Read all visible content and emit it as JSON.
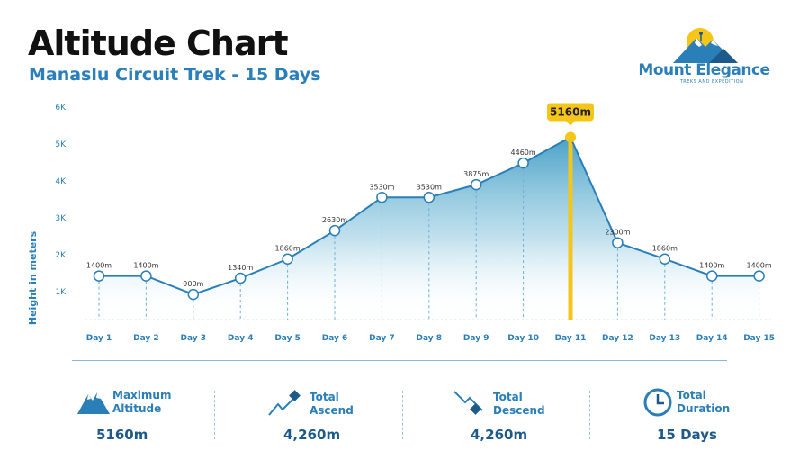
{
  "header": {
    "title": "Altitude Chart",
    "subtitle": "Manaslu Circuit Trek - 15 Days"
  },
  "logo": {
    "name": "Mount Elegance",
    "tagline": "TREKS AND EXPEDITION",
    "colors": {
      "sun": "#f5c518",
      "mountain": "#2a7fb8"
    }
  },
  "chart_data": {
    "type": "area",
    "title": "",
    "xlabel": "",
    "ylabel": "Height in meters",
    "ylim": [
      0,
      6000
    ],
    "yticks": [
      1000,
      2000,
      3000,
      4000,
      5000,
      6000
    ],
    "ytick_labels": [
      "1K",
      "2K",
      "3K",
      "4K",
      "5K",
      "6K"
    ],
    "categories": [
      "Day 1",
      "Day 2",
      "Day 3",
      "Day 4",
      "Day 5",
      "Day 6",
      "Day 7",
      "Day 8",
      "Day 9",
      "Day 10",
      "Day 11",
      "Day 12",
      "Day 13",
      "Day 14",
      "Day 15"
    ],
    "values": [
      1400,
      1400,
      900,
      1340,
      1860,
      2630,
      3530,
      3530,
      3875,
      4460,
      5160,
      2300,
      1860,
      1400,
      1400
    ],
    "data_labels": [
      "1400m",
      "1400m",
      "900m",
      "1340m",
      "1860m",
      "2630m",
      "3530m",
      "3530m",
      "3875m",
      "4460m",
      "5160m",
      "2300m",
      "1860m",
      "1400m",
      "1400m"
    ],
    "highlight": {
      "category": "Day 11",
      "value": 5160,
      "label": "5160m"
    },
    "colors": {
      "line": "#2a7fb8",
      "fill": "#5aaecf",
      "highlight": "#f5c518",
      "axis_text": "#2a7fb8"
    },
    "grid": false,
    "legend": "none"
  },
  "stats": [
    {
      "label": "Maximum Altitude",
      "value": "5160m",
      "icon": "mountain-icon"
    },
    {
      "label": "Total Ascend",
      "value": "4,260m",
      "icon": "ascend-icon"
    },
    {
      "label": "Total Descend",
      "value": "4,260m",
      "icon": "descend-icon"
    },
    {
      "label": "Total Duration",
      "value": "15 Days",
      "icon": "clock-icon"
    }
  ]
}
